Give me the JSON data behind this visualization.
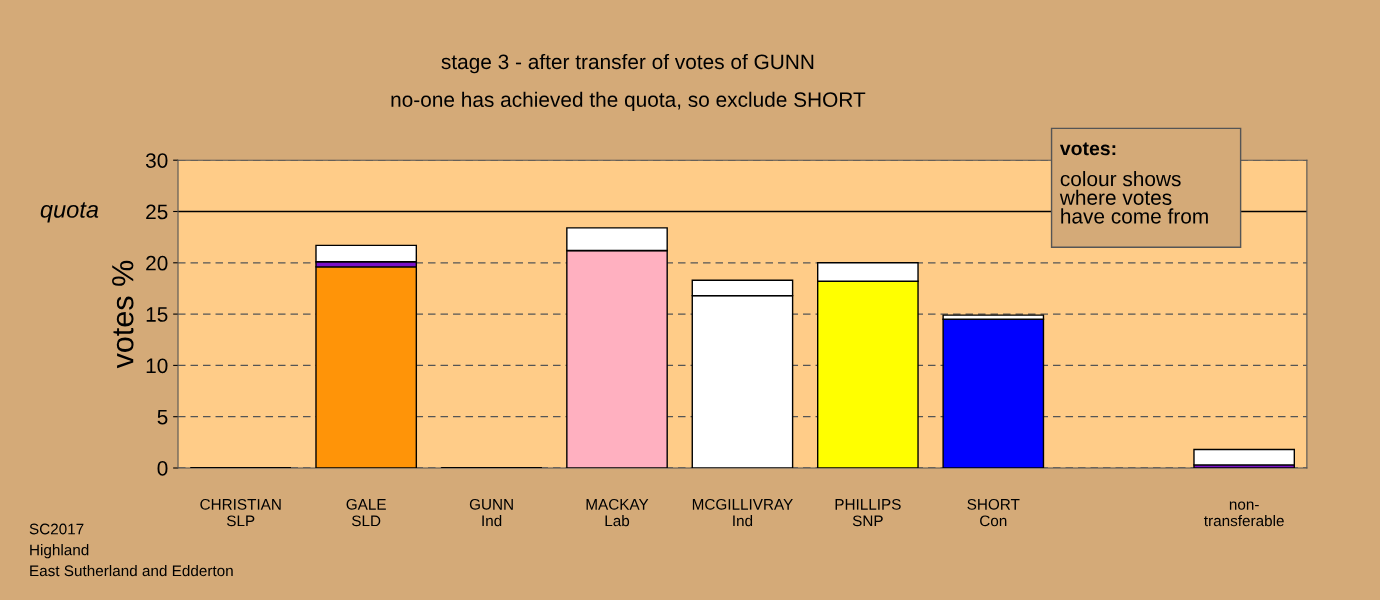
{
  "chart_data": {
    "type": "bar",
    "stacked": true,
    "title": "stage 3 - after transfer of votes of GUNN",
    "subtitle": "no-one has achieved the quota, so exclude SHORT",
    "ylabel": "votes %",
    "categories": [
      "CHRISTIAN\nSLP",
      "GALE\nSLD",
      "GUNN\nInd",
      "MACKAY\nLab",
      "MCGILLIVRAY\nInd",
      "PHILLIPS\nSNP",
      "SHORT\nCon",
      null,
      "non-\ntransferable"
    ],
    "series": [
      {
        "colors": [
          "#000000",
          "#ff9408",
          "#000000",
          "#ffb0c0",
          "#ffffff",
          "#ffff00",
          "#0000ff",
          "#ffffff",
          "#ffffff"
        ],
        "values": [
          0,
          19.6,
          0,
          21.2,
          16.8,
          18.2,
          14.5,
          null,
          0
        ]
      },
      {
        "color": "#7a10c8",
        "values": [
          0,
          0.5,
          0,
          0,
          0,
          0,
          0,
          null,
          0.3
        ]
      },
      {
        "color": "#ffffff",
        "values": [
          0,
          1.6,
          0,
          2.2,
          1.5,
          1.8,
          0.4,
          null,
          1.5
        ]
      }
    ],
    "ylim": [
      0,
      30
    ],
    "yticks": [
      0,
      5,
      10,
      15,
      20,
      25,
      30
    ],
    "grid": "y",
    "ref_lines": [
      {
        "axis": "y",
        "value": 25,
        "label": "quota",
        "color": "#000000",
        "line_style": "solid"
      }
    ],
    "annotations": [
      "votes:",
      "colour shows\nwhere votes\nhave come from",
      "SC2017\nHighland\nEast Sutherland and Edderton"
    ]
  }
}
